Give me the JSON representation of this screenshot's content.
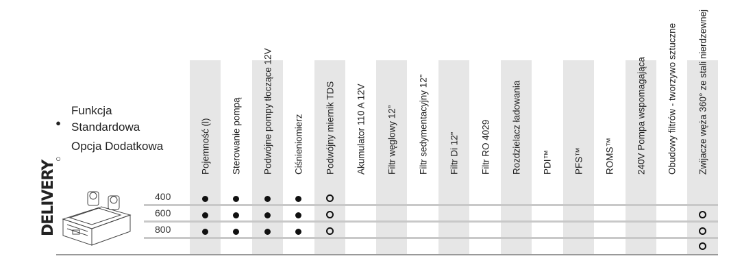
{
  "legend": {
    "standard": {
      "symbol": "dot",
      "label": "Funkcja Standardowa"
    },
    "optional": {
      "symbol": "ring",
      "label": "Opcja Dodatkowa"
    }
  },
  "side_label": "DELIVERY",
  "columns": [
    "Pojemność (l)",
    "Sterowanie pompą",
    "Podwójne pompy tłoczące 12V",
    "Ciśnieniomierz",
    "Podwójny miernik TDS",
    "Akumulator 110 A 12V",
    "Filtr węglowy 12”",
    "Filtr sedymentacyjny 12”",
    "Filtr Di 12”",
    "Filtr RO 4029",
    "Rozdzielacz ładowania",
    "PDI™",
    "PFS™",
    "ROMS™",
    "240V Pompa wspomagająca",
    "Obudowy filtrów - tworzywo sztuczne",
    "Zwijacze węża 360° ze stali nierdzewnej"
  ],
  "rows": [
    {
      "label": "400",
      "cells": [
        "dot",
        "dot",
        "dot",
        "dot",
        "ring",
        "",
        "",
        "",
        "",
        "",
        "",
        "",
        "",
        "",
        "",
        "",
        ""
      ]
    },
    {
      "label": "600",
      "cells": [
        "dot",
        "dot",
        "dot",
        "dot",
        "ring",
        "",
        "",
        "",
        "",
        "",
        "",
        "",
        "",
        "",
        "",
        "",
        "ring"
      ]
    },
    {
      "label": "800",
      "cells": [
        "dot",
        "dot",
        "dot",
        "dot",
        "ring",
        "",
        "",
        "",
        "",
        "",
        "",
        "",
        "",
        "",
        "",
        "",
        "ring"
      ]
    },
    {
      "label": "",
      "cells": [
        "",
        "",
        "",
        "",
        "",
        "",
        "",
        "",
        "",
        "",
        "",
        "",
        "",
        "",
        "",
        "",
        "ring"
      ]
    }
  ]
}
